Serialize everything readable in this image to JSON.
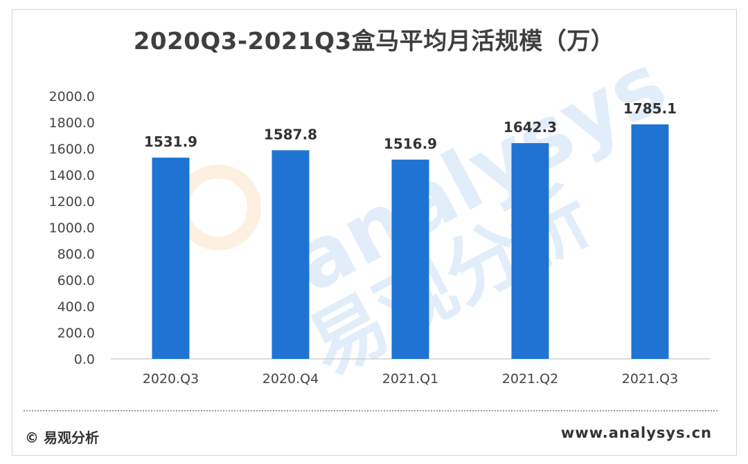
{
  "chart_data": {
    "type": "bar",
    "title": "2020Q3-2021Q3盒马平均月活规模（万）",
    "categories": [
      "2020.Q3",
      "2020.Q4",
      "2021.Q1",
      "2021.Q2",
      "2021.Q3"
    ],
    "values": [
      1531.9,
      1587.8,
      1516.9,
      1642.3,
      1785.1
    ],
    "data_labels": [
      "1531.9",
      "1587.8",
      "1516.9",
      "1642.3",
      "1785.1"
    ],
    "yticks": [
      "0.0",
      "200.0",
      "400.0",
      "600.0",
      "800.0",
      "1000.0",
      "1200.0",
      "1400.0",
      "1600.0",
      "1800.0",
      "2000.0"
    ],
    "ylim": [
      0,
      2000
    ],
    "bar_color": "#1f74d3",
    "grid": false,
    "legend": "none"
  },
  "footer": {
    "source": "© 易观分析",
    "website": "www.analysys.cn"
  },
  "watermark": {
    "text_en": "analysys",
    "text_cn": "易观分析"
  }
}
